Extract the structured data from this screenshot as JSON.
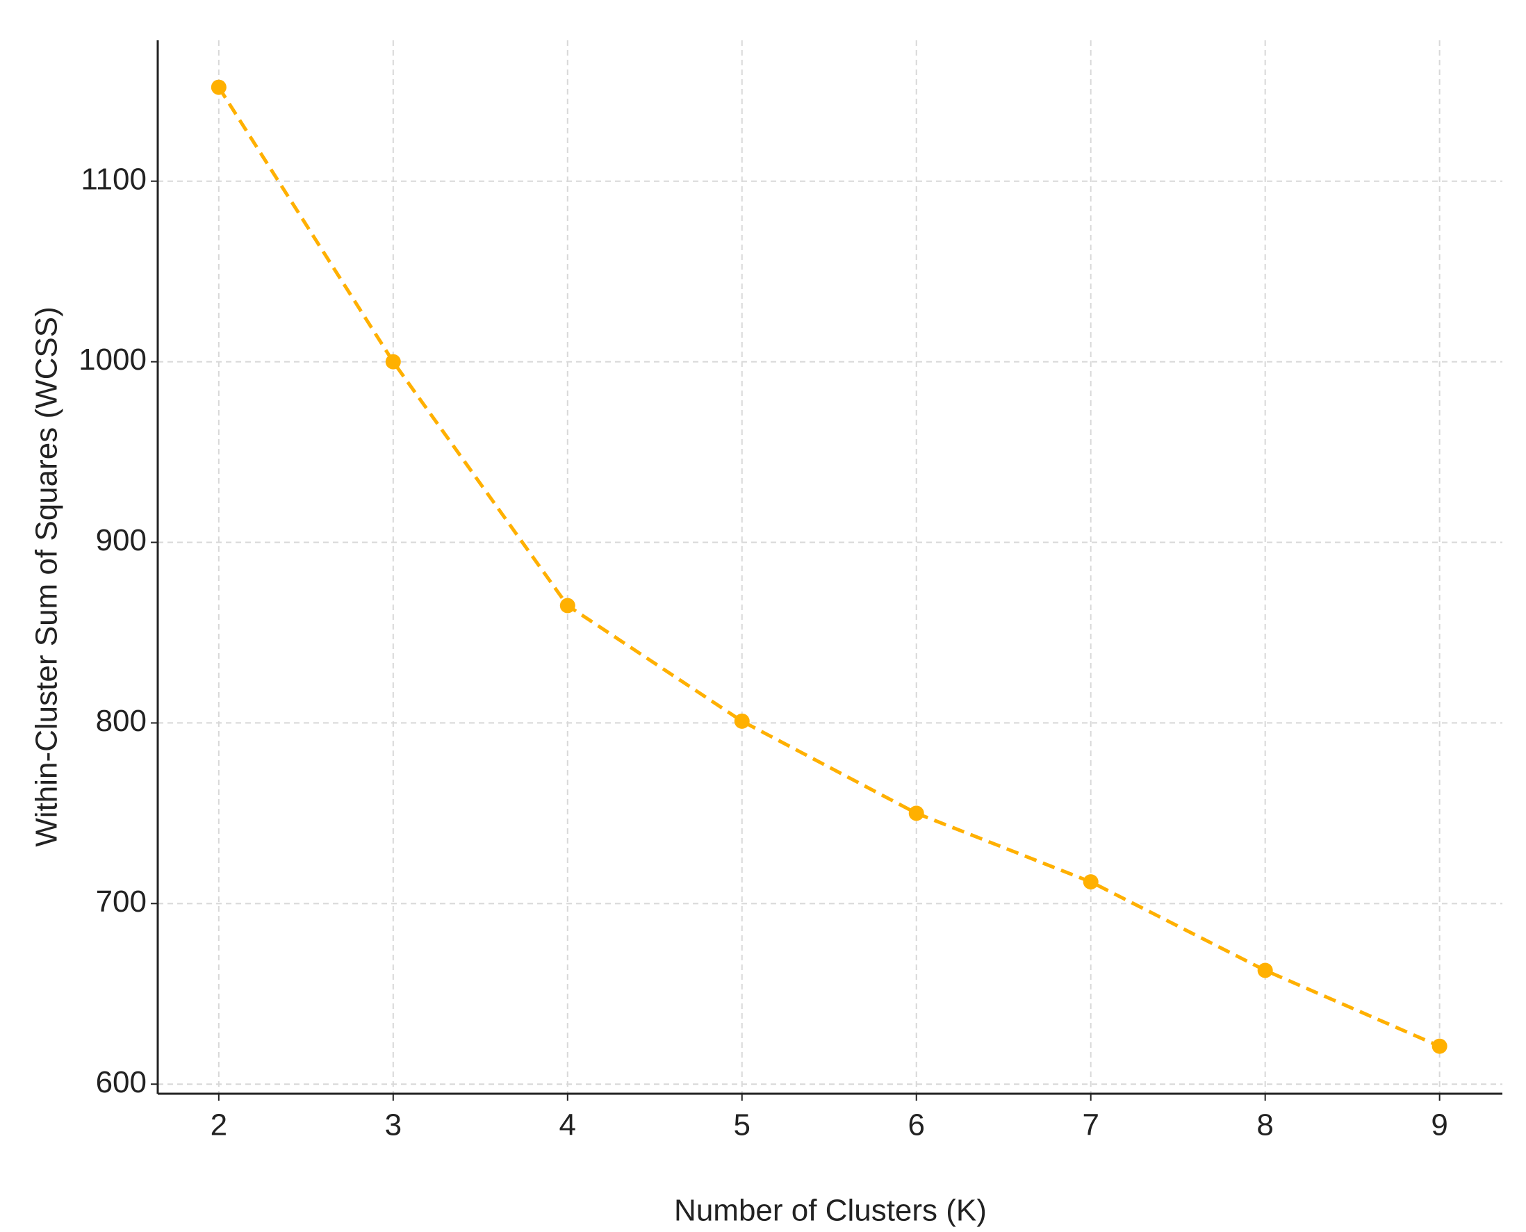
{
  "chart_data": {
    "type": "line",
    "x_label": "Number of Clusters (K)",
    "y_label": "Within-Cluster Sum of Squares (WCSS)",
    "x": [
      2,
      3,
      4,
      5,
      6,
      7,
      8,
      9
    ],
    "series": [
      {
        "color": "#ffb000",
        "values": [
          1152,
          1000,
          865,
          801,
          750,
          712,
          663,
          621
        ]
      }
    ],
    "xlim": [
      1.65,
      9.36
    ],
    "ylim": [
      594.7,
      1178
    ],
    "xticks": [
      2,
      3,
      4,
      5,
      6,
      7,
      8,
      9
    ],
    "yticks": [
      600,
      700,
      800,
      900,
      1000,
      1100
    ],
    "grid": true,
    "line_style": "dashed",
    "marker": "circle"
  }
}
